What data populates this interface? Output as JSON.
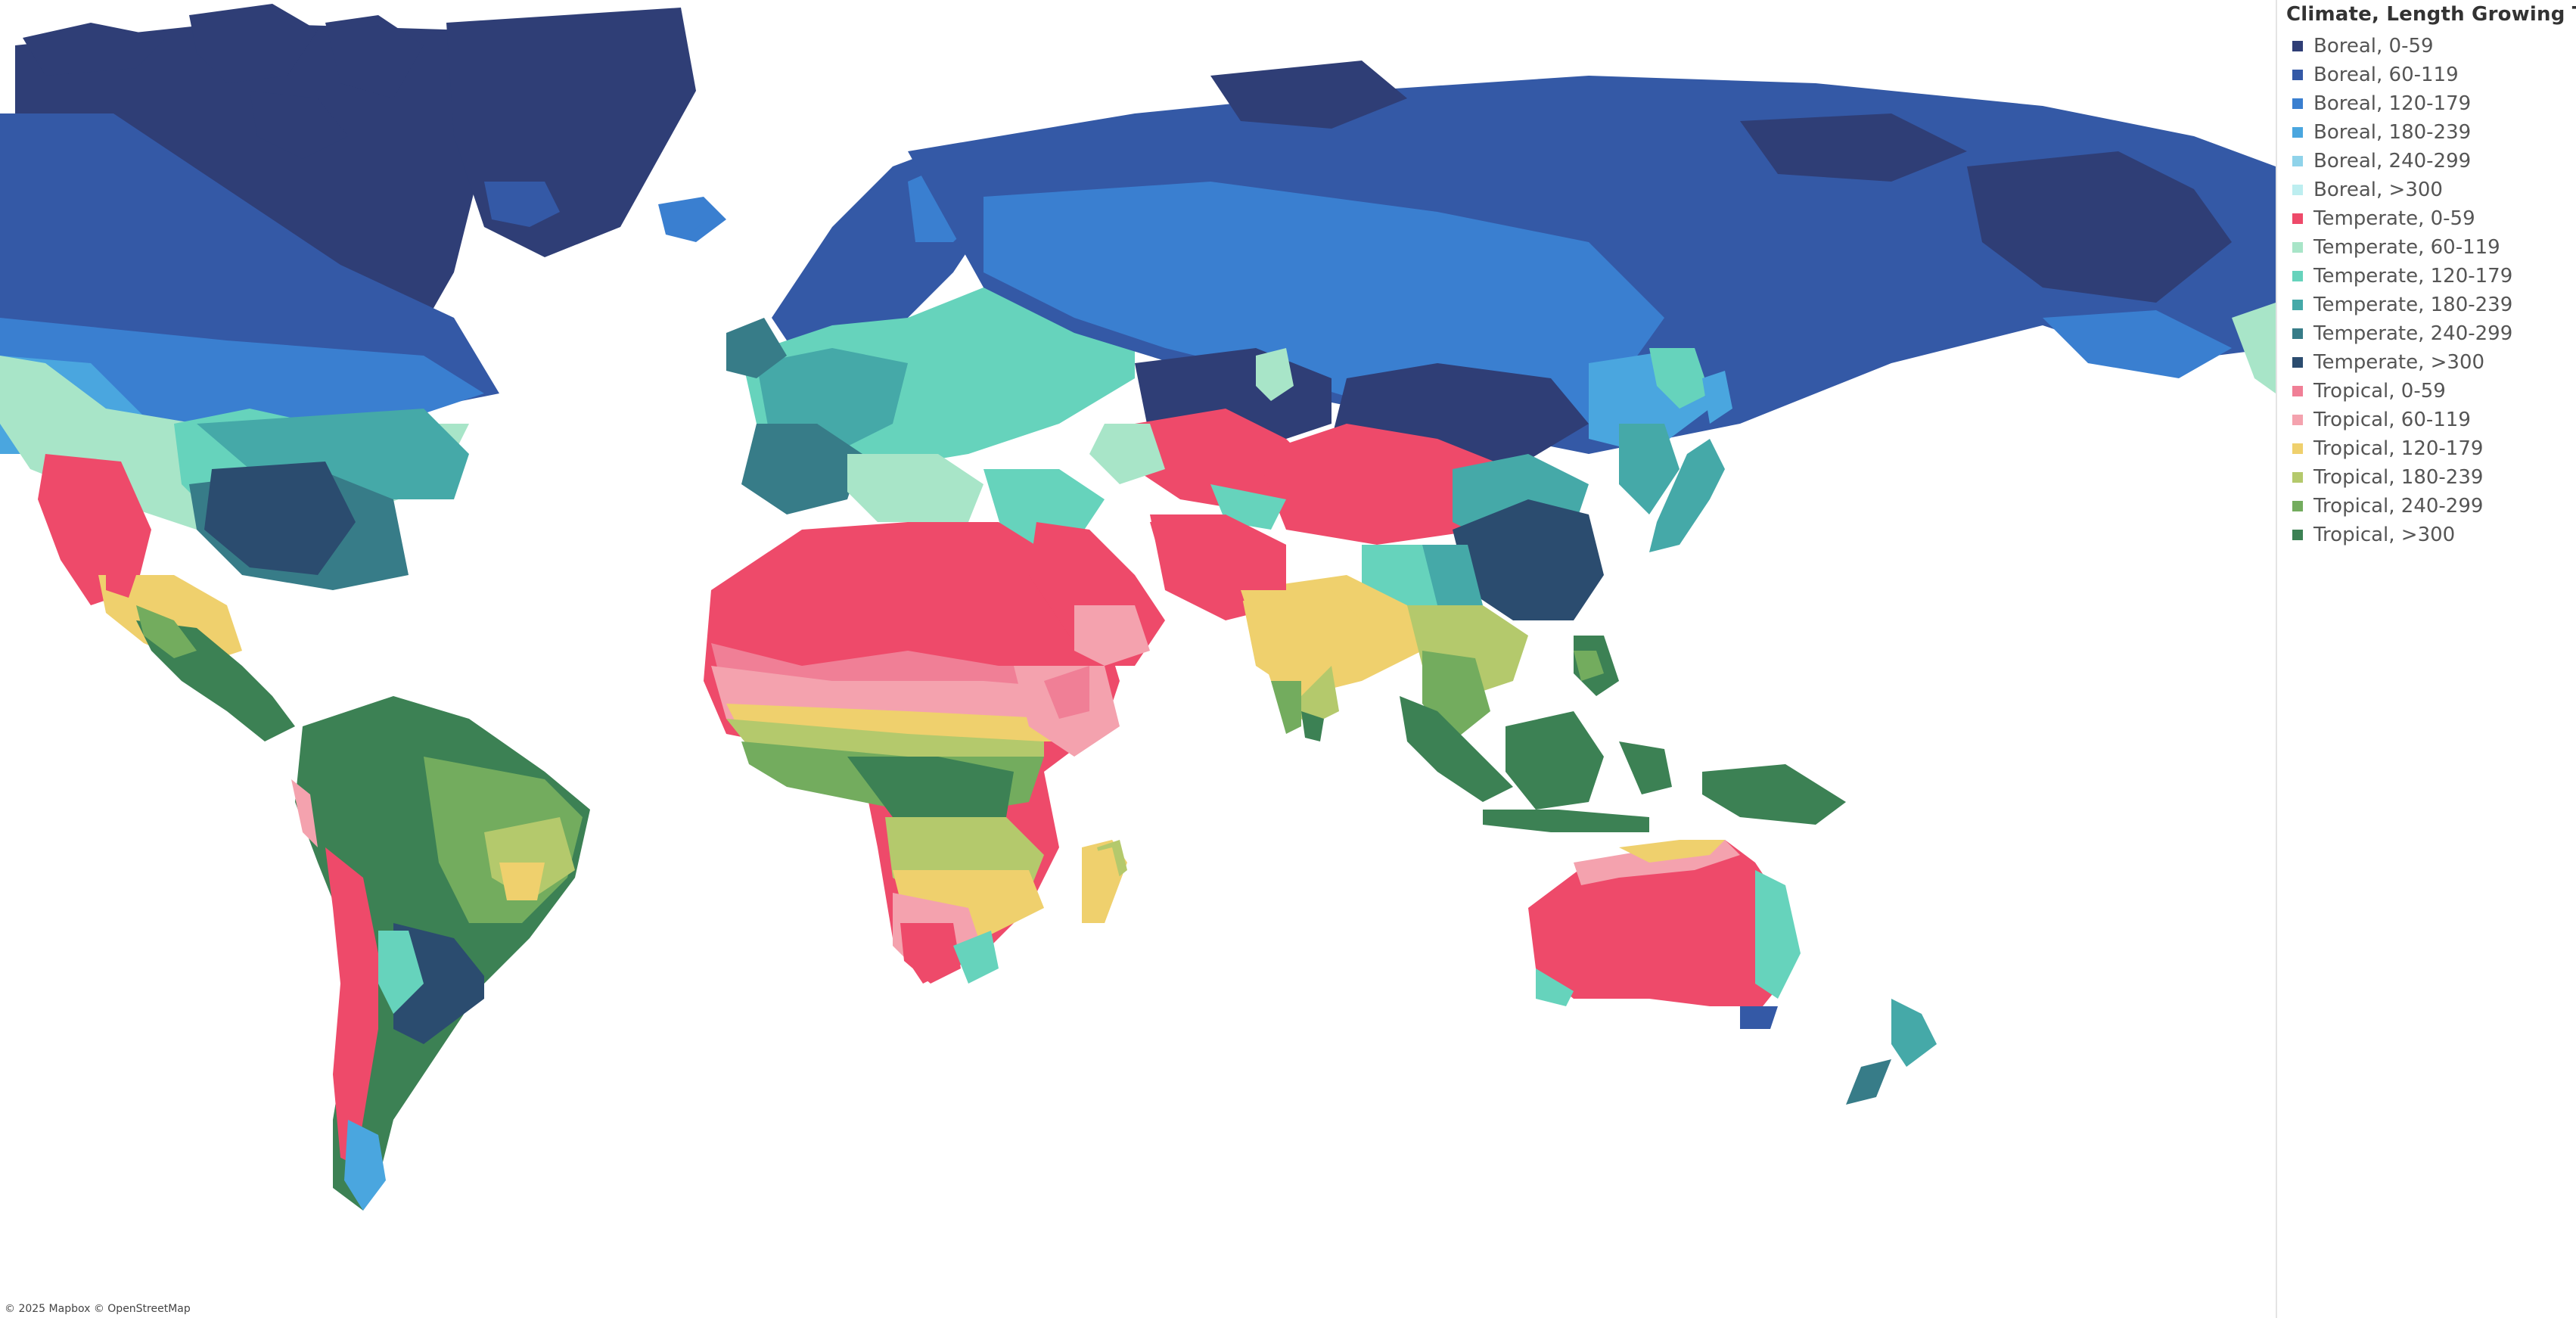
{
  "legend": {
    "title": "Climate, Length Growing Time",
    "items": [
      {
        "label": "Boreal, 0-59",
        "color": "#2f3e76"
      },
      {
        "label": "Boreal, 60-119",
        "color": "#3459a6"
      },
      {
        "label": "Boreal, 120-179",
        "color": "#3a7fd0"
      },
      {
        "label": "Boreal, 180-239",
        "color": "#4aa6df"
      },
      {
        "label": "Boreal, 240-299",
        "color": "#8fd3ea"
      },
      {
        "label": "Boreal, >300",
        "color": "#bdeef0"
      },
      {
        "label": "Temperate, 0-59",
        "color": "#ee4a6a"
      },
      {
        "label": "Temperate, 60-119",
        "color": "#a8e5c8"
      },
      {
        "label": "Temperate, 120-179",
        "color": "#66d3bc"
      },
      {
        "label": "Temperate, 180-239",
        "color": "#45a9a8"
      },
      {
        "label": "Temperate, 240-299",
        "color": "#377c88"
      },
      {
        "label": "Temperate, >300",
        "color": "#2b4c6f"
      },
      {
        "label": "Tropical, 0-59",
        "color": "#f07f96"
      },
      {
        "label": "Tropical, 60-119",
        "color": "#f4a2ae"
      },
      {
        "label": "Tropical, 120-179",
        "color": "#efd06d"
      },
      {
        "label": "Tropical, 180-239",
        "color": "#b4c96c"
      },
      {
        "label": "Tropical, 240-299",
        "color": "#73ac5e"
      },
      {
        "label": "Tropical, >300",
        "color": "#3c8154"
      }
    ]
  },
  "attribution": "© 2025 Mapbox © OpenStreetMap"
}
